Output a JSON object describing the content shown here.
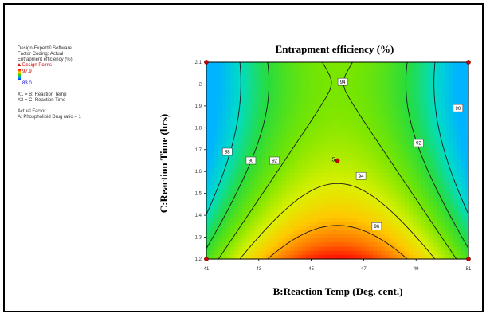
{
  "legend": {
    "software": "Design-Expert® Software",
    "coding": "Factor Coding: Actual",
    "response": "Entrapment efficiency (%)",
    "design_points_label": "Design Points",
    "max_value": "97.9",
    "min_value": "83.0",
    "x1": "X1 = B: Reaction Temp",
    "x2": "X2 = C: Reaction Time",
    "actual_factor_heading": "Actual Factor",
    "actual_factor": "A: Phospholipid Drug ratio = 1"
  },
  "chart_data": {
    "type": "contour",
    "title": "Entrapment efficiency (%)",
    "xlabel": "B:Reaction Temp (Deg. cent.)",
    "ylabel": "C:Reaction Time (hrs)",
    "xlim": [
      41,
      51
    ],
    "ylim": [
      1.2,
      2.1
    ],
    "x_ticks": [
      "41",
      "43",
      "45",
      "47",
      "49",
      "51"
    ],
    "y_ticks": [
      "1.2",
      "1.3",
      "1.4",
      "1.5",
      "1.6",
      "1.7",
      "1.8",
      "1.9",
      "2",
      "2.1"
    ],
    "contour_levels": [
      88,
      90,
      92,
      94,
      96
    ],
    "contour_labels": [
      {
        "text": "88",
        "x": 41.8,
        "y": 1.69
      },
      {
        "text": "90",
        "x": 42.7,
        "y": 1.65
      },
      {
        "text": "92",
        "x": 43.6,
        "y": 1.65
      },
      {
        "text": "94",
        "x": 46.2,
        "y": 2.01
      },
      {
        "text": "94",
        "x": 46.9,
        "y": 1.58
      },
      {
        "text": "96",
        "x": 47.5,
        "y": 1.35
      },
      {
        "text": "92",
        "x": 49.1,
        "y": 1.73
      },
      {
        "text": "90",
        "x": 50.6,
        "y": 1.89
      }
    ],
    "design_points": [
      {
        "x": 41,
        "y": 1.2
      },
      {
        "x": 41,
        "y": 2.1
      },
      {
        "x": 51,
        "y": 1.2
      },
      {
        "x": 51,
        "y": 2.1
      },
      {
        "x": 46,
        "y": 1.65
      }
    ],
    "center_point_label": "5",
    "response_range": [
      83.0,
      97.9
    ],
    "colors": {
      "low": "#00b8ff",
      "mid": "#3cd400",
      "high": "#ff2000",
      "point": "#cc0000"
    }
  }
}
